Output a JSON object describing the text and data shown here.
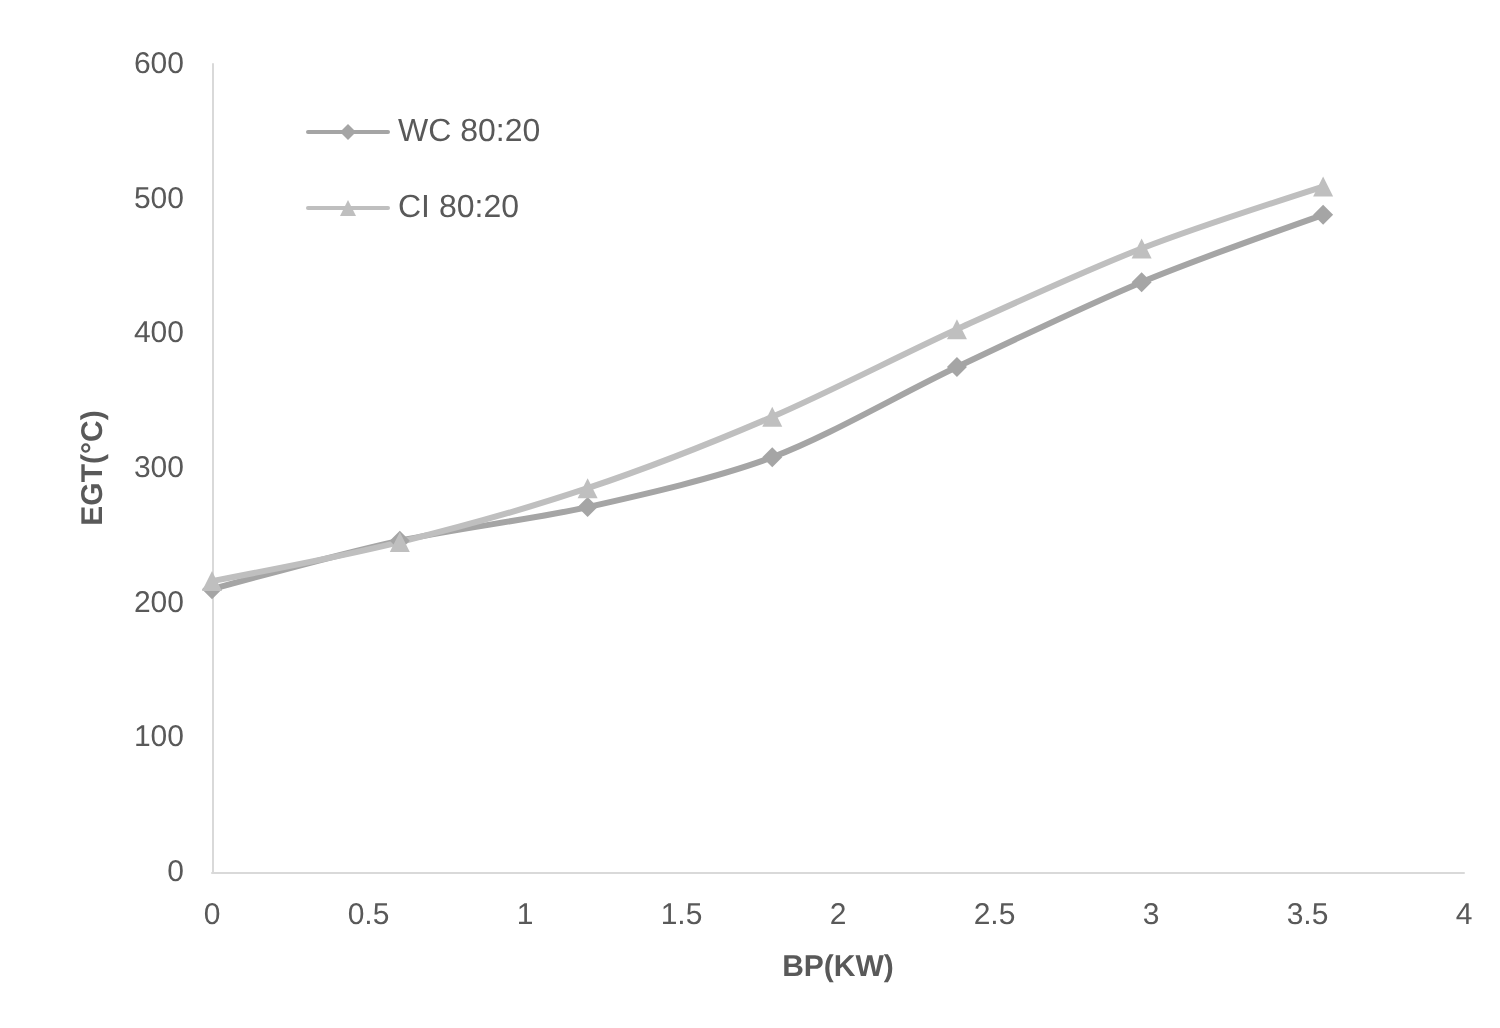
{
  "chart_data": {
    "type": "line",
    "xlabel": "BP(KW)",
    "ylabel": "EGT(°C)",
    "xlim": [
      0,
      4
    ],
    "xticks": [
      0,
      0.5,
      1,
      1.5,
      2,
      2.5,
      3,
      3.5,
      4
    ],
    "ylim": [
      0,
      600
    ],
    "yticks": [
      0,
      100,
      200,
      300,
      400,
      500,
      600
    ],
    "grid": false,
    "legend": "top left",
    "line_style": "solid",
    "series": [
      {
        "name": "WC 80:20",
        "color": "#a5a5a5",
        "marker": "diamond",
        "x": [
          0,
          0.6,
          1.2,
          1.79,
          2.38,
          2.97,
          3.55
        ],
        "values": [
          210,
          246,
          271,
          308,
          375,
          438,
          488
        ]
      },
      {
        "name": "CI 80:20",
        "color": "#bfbfbf",
        "marker": "triangle",
        "x": [
          0,
          0.6,
          1.2,
          1.79,
          2.38,
          2.97,
          3.55
        ],
        "values": [
          216,
          245,
          285,
          338,
          403,
          463,
          509
        ]
      }
    ]
  }
}
